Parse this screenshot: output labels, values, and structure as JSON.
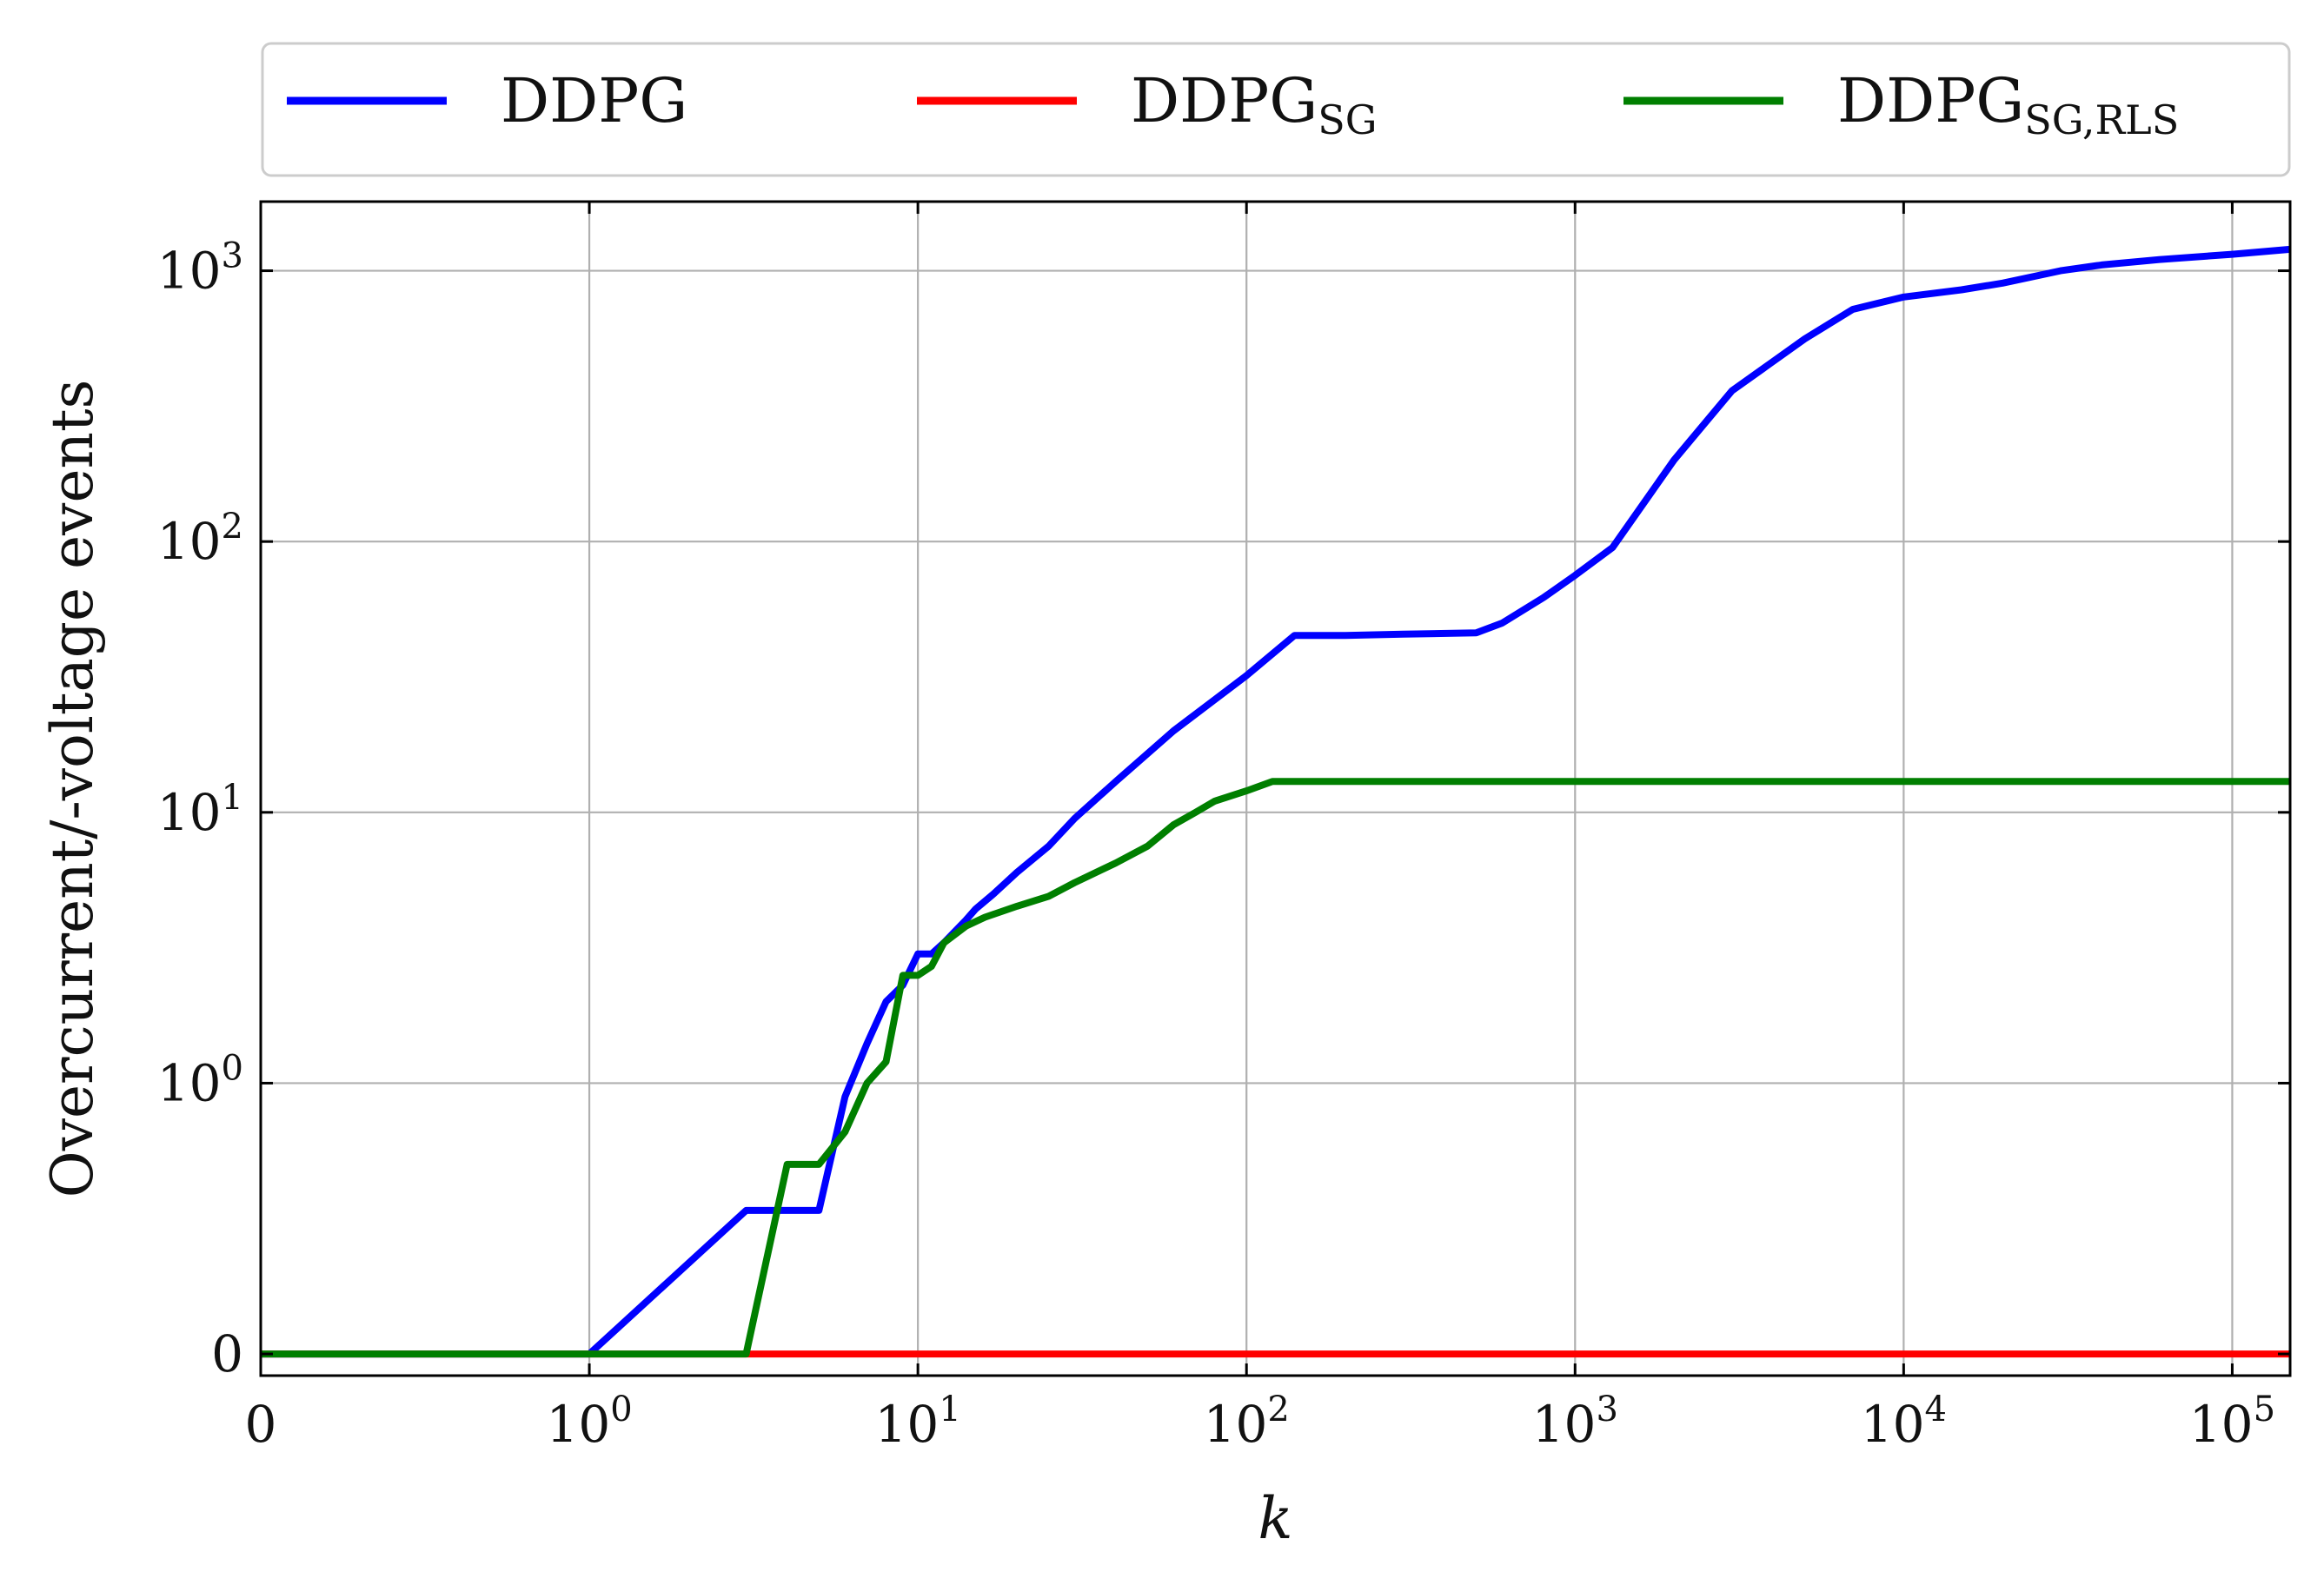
{
  "chart_data": {
    "type": "line",
    "xlabel": "k",
    "ylabel": "Overcurrent/-voltage events",
    "xscale": "symlog",
    "yscale": "symlog",
    "xlim": [
      0,
      150000
    ],
    "ylim": [
      -0.08,
      1800
    ],
    "grid": true,
    "legend_placement": "top",
    "x_ticks": [
      {
        "base": "0",
        "exp": "",
        "value": 0
      },
      {
        "base": "10",
        "exp": "0",
        "value": 1
      },
      {
        "base": "10",
        "exp": "1",
        "value": 10
      },
      {
        "base": "10",
        "exp": "2",
        "value": 100
      },
      {
        "base": "10",
        "exp": "3",
        "value": 1000
      },
      {
        "base": "10",
        "exp": "4",
        "value": 10000
      },
      {
        "base": "10",
        "exp": "5",
        "value": 100000
      }
    ],
    "y_ticks": [
      {
        "base": "0",
        "exp": "",
        "value": 0
      },
      {
        "base": "10",
        "exp": "0",
        "value": 1
      },
      {
        "base": "10",
        "exp": "1",
        "value": 10
      },
      {
        "base": "10",
        "exp": "2",
        "value": 100
      },
      {
        "base": "10",
        "exp": "3",
        "value": 1000
      }
    ],
    "series": [
      {
        "name": "DDPG",
        "subscript": "",
        "color": "#0000ff",
        "x": [
          0,
          1,
          3,
          5,
          6,
          7,
          8,
          9,
          10,
          11,
          12,
          14,
          15,
          17,
          20,
          25,
          30,
          40,
          60,
          100,
          140,
          200,
          300,
          500,
          600,
          800,
          1000,
          1300,
          2000,
          3000,
          5000,
          7000,
          10000,
          15000,
          20000,
          30000,
          40000,
          60000,
          100000,
          150000
        ],
        "y": [
          0,
          0,
          0.53,
          0.53,
          0.95,
          1.4,
          2,
          2.3,
          3,
          3,
          3.3,
          4,
          4.4,
          5,
          6,
          7.5,
          9.5,
          13,
          20,
          32,
          45,
          45,
          45.5,
          46,
          50,
          62,
          75,
          95,
          200,
          360,
          560,
          720,
          800,
          850,
          900,
          1000,
          1050,
          1100,
          1150,
          1200
        ]
      },
      {
        "name": "DDPG",
        "subscript": "SG",
        "color": "#ff0000",
        "x": [
          0,
          150000
        ],
        "y": [
          0,
          0
        ]
      },
      {
        "name": "DDPG",
        "subscript": "SG,RLS",
        "color": "#007f00",
        "x": [
          0,
          1,
          2,
          3,
          4,
          5,
          6,
          7,
          8,
          9,
          10,
          11,
          12,
          14,
          16,
          20,
          25,
          30,
          40,
          50,
          60,
          70,
          80,
          100,
          120,
          1000,
          150000
        ],
        "y": [
          0,
          0,
          0,
          0,
          0.7,
          0.7,
          0.82,
          1,
          1.2,
          2.5,
          2.5,
          2.7,
          3.3,
          3.8,
          4.1,
          4.5,
          4.9,
          5.5,
          6.5,
          7.5,
          9,
          10,
          11,
          12,
          13,
          13,
          13
        ]
      }
    ]
  }
}
